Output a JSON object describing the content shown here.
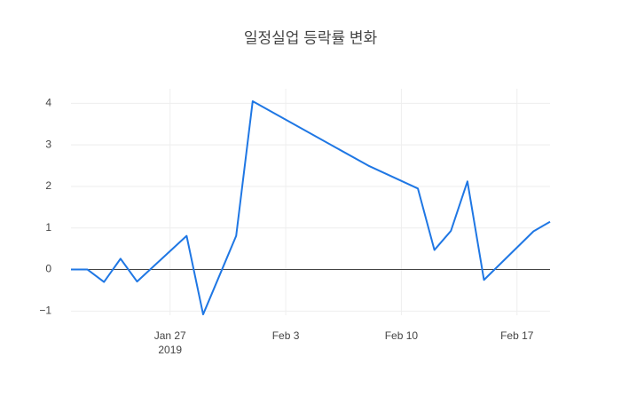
{
  "chart_data": {
    "type": "line",
    "title": "일정실업 등락률 변화",
    "x": [
      "2019-01-21",
      "2019-01-22",
      "2019-01-23",
      "2019-01-24",
      "2019-01-25",
      "2019-01-28",
      "2019-01-29",
      "2019-01-31",
      "2019-02-01",
      "2019-02-08",
      "2019-02-11",
      "2019-02-12",
      "2019-02-13",
      "2019-02-14",
      "2019-02-15",
      "2019-02-18",
      "2019-02-19"
    ],
    "series": [
      {
        "color": "#1f77e4",
        "values": [
          0,
          0,
          -0.3,
          0.26,
          -0.29,
          0.81,
          -1.08,
          0.81,
          4.05,
          2.5,
          1.95,
          0.47,
          0.93,
          2.12,
          -0.25,
          0.92,
          1.15
        ]
      }
    ],
    "xlim": [
      "2019-01-21",
      "2019-02-19"
    ],
    "xticks": [
      {
        "value": "2019-01-27",
        "label": "Jan 27"
      },
      {
        "value": "2019-02-03",
        "label": "Feb 3"
      },
      {
        "value": "2019-02-10",
        "label": "Feb 10"
      },
      {
        "value": "2019-02-17",
        "label": "Feb 17"
      }
    ],
    "x_axis_year": "2019",
    "ylim": [
      -1.1,
      4.35
    ],
    "yticks": [
      {
        "value": -1,
        "label": "−1"
      },
      0,
      1,
      2,
      3,
      4
    ],
    "grid": true,
    "zero_line": true
  }
}
